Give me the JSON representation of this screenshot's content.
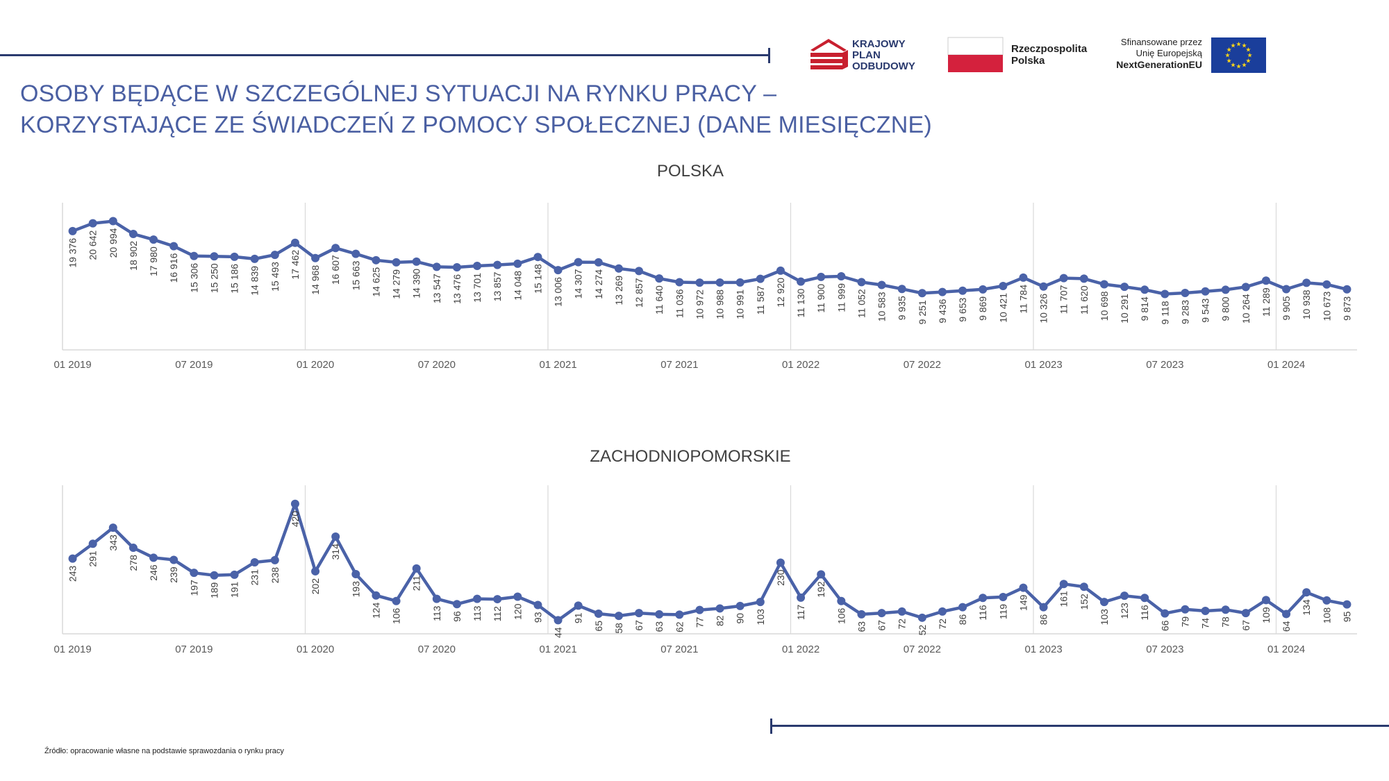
{
  "header": {
    "title_line1": "OSOBY BĘDĄCE W SZCZEGÓLNEJ SYTUACJI NA RYNKU PRACY –",
    "title_line2": "KORZYSTAJĄCE ZE ŚWIADCZEŃ Z POMOCY SPOŁECZNEJ (DANE MIESIĘCZNE)"
  },
  "logos": {
    "kpo_line1": "KRAJOWY",
    "kpo_line2": "PLAN",
    "kpo_line3": "ODBUDOWY",
    "rp_line1": "Rzeczpospolita",
    "rp_line2": "Polska",
    "eu_line1": "Sfinansowane przez",
    "eu_line2": "Unię Europejską",
    "eu_line3": "NextGenerationEU"
  },
  "colors": {
    "accent": "#4a5fa2",
    "series": "#4a62a8",
    "rule": "#2a3a6e",
    "grid": "#d9d9d9",
    "pl_red": "#d4213d",
    "kpo_red": "#c8202f",
    "eu_blue": "#1a3e9b",
    "eu_star": "#ffd617"
  },
  "footer": {
    "source": "Źródło: opracowanie własne na podstawie sprawozdania o rynku pracy"
  },
  "chart_data": [
    {
      "type": "line",
      "title": "POLSKA",
      "x_start": "2019-01",
      "x_ticks": [
        "01 2019",
        "07 2019",
        "01 2020",
        "07 2020",
        "01 2021",
        "07 2021",
        "01 2022",
        "07 2022",
        "01 2023",
        "07 2023",
        "01 2024"
      ],
      "series": [
        {
          "values": [
            19376,
            20642,
            20994,
            18902,
            17980,
            16916,
            15306,
            15250,
            15186,
            14839,
            15493,
            17462,
            14968,
            16607,
            15663,
            14625,
            14279,
            14390,
            13547,
            13476,
            13701,
            13857,
            14048,
            15148,
            13006,
            14307,
            14274,
            13269,
            12857,
            11640,
            11036,
            10972,
            10988,
            10991,
            11587,
            12920,
            11130,
            11900,
            11999,
            11052,
            10583,
            9935,
            9251,
            9436,
            9653,
            9869,
            10421,
            11784,
            10326,
            11707,
            11620,
            10698,
            10291,
            9814,
            9118,
            9283,
            9543,
            9800,
            10264,
            11289,
            9905,
            10938,
            10673,
            9873
          ],
          "labels": [
            "19 376",
            "20 642",
            "20 994",
            "18 902",
            "17 980",
            "16 916",
            "15 306",
            "15 250",
            "15 186",
            "14 839",
            "15 493",
            "17 462",
            "14 968",
            "16 607",
            "15 663",
            "14 625",
            "14 279",
            "14 390",
            "13 547",
            "13 476",
            "13 701",
            "13 857",
            "14 048",
            "15 148",
            "13 006",
            "14 307",
            "14 274",
            "13 269",
            "12 857",
            "11 640",
            "11 036",
            "10 972",
            "10 988",
            "10 991",
            "11 587",
            "12 920",
            "11 130",
            "11 900",
            "11 999",
            "11 052",
            "10 583",
            "9 935",
            "9 251",
            "9 436",
            "9 653",
            "9 869",
            "10 421",
            "11 784",
            "10 326",
            "11 707",
            "11 620",
            "10 698",
            "10 291",
            "9 814",
            "9 118",
            "9 283",
            "9 543",
            "9 800",
            "10 264",
            "11 289",
            "9 905",
            "10 938",
            "10 673",
            "9 873"
          ]
        }
      ],
      "grid": "vertical-yearly",
      "legend": "none"
    },
    {
      "type": "line",
      "title": "ZACHODNIOPOMORSKIE",
      "x_start": "2019-01",
      "x_ticks": [
        "01 2019",
        "07 2019",
        "01 2020",
        "07 2020",
        "01 2021",
        "07 2021",
        "01 2022",
        "07 2022",
        "01 2023",
        "07 2023",
        "01 2024"
      ],
      "series": [
        {
          "values": [
            243,
            291,
            343,
            278,
            246,
            239,
            197,
            189,
            191,
            231,
            238,
            420,
            202,
            314,
            193,
            124,
            106,
            211,
            113,
            96,
            113,
            112,
            120,
            93,
            44,
            91,
            65,
            58,
            67,
            63,
            62,
            77,
            82,
            90,
            103,
            230,
            117,
            192,
            106,
            63,
            67,
            72,
            52,
            72,
            86,
            116,
            119,
            149,
            86,
            161,
            152,
            103,
            123,
            116,
            66,
            79,
            74,
            78,
            67,
            109,
            64,
            134,
            108,
            95
          ],
          "labels": [
            "243",
            "291",
            "343",
            "278",
            "246",
            "239",
            "197",
            "189",
            "191",
            "231",
            "238",
            "420",
            "202",
            "314",
            "193",
            "124",
            "106",
            "211",
            "113",
            "96",
            "113",
            "112",
            "120",
            "93",
            "44",
            "91",
            "65",
            "58",
            "67",
            "63",
            "62",
            "77",
            "82",
            "90",
            "103",
            "230",
            "117",
            "192",
            "106",
            "63",
            "67",
            "72",
            "52",
            "72",
            "86",
            "116",
            "119",
            "149",
            "86",
            "161",
            "152",
            "103",
            "123",
            "116",
            "66",
            "79",
            "74",
            "78",
            "67",
            "109",
            "64",
            "134",
            "108",
            "95"
          ]
        }
      ],
      "grid": "vertical-yearly",
      "legend": "none"
    }
  ]
}
